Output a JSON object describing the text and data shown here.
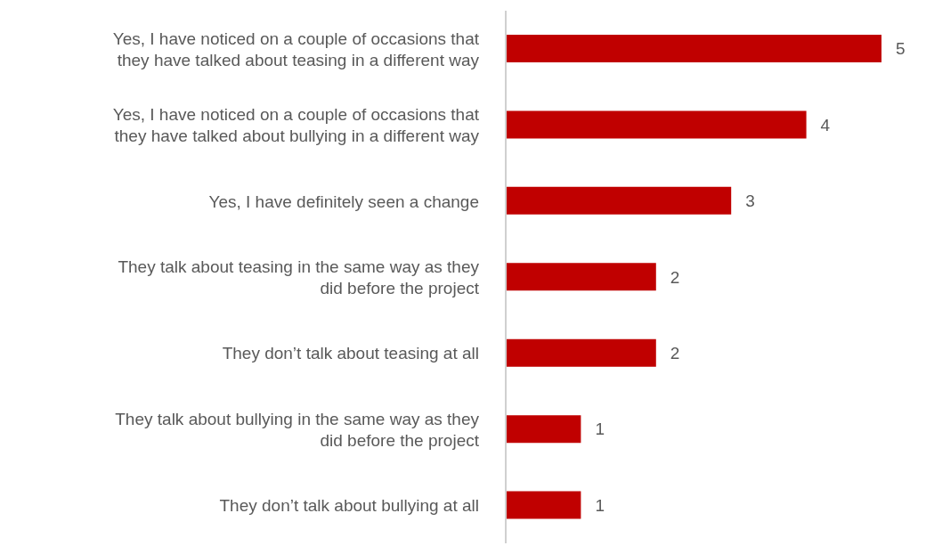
{
  "chart_data": {
    "type": "bar",
    "orientation": "horizontal",
    "categories": [
      "Yes, I have noticed on a couple of occasions that they have talked about teasing in a different way",
      "Yes, I have noticed on a couple of occasions that they have talked about bullying in a different way",
      "Yes, I have definitely seen a change",
      "They talk about teasing in the same way as they did before the project",
      "They don’t talk about teasing at all",
      "They talk about bullying in the same way as they did before the project",
      "They don’t talk about bullying at all"
    ],
    "values": [
      5,
      4,
      3,
      2,
      2,
      1,
      1
    ],
    "color": "#c00000",
    "data_labels": true,
    "tick_labels": "y"
  }
}
